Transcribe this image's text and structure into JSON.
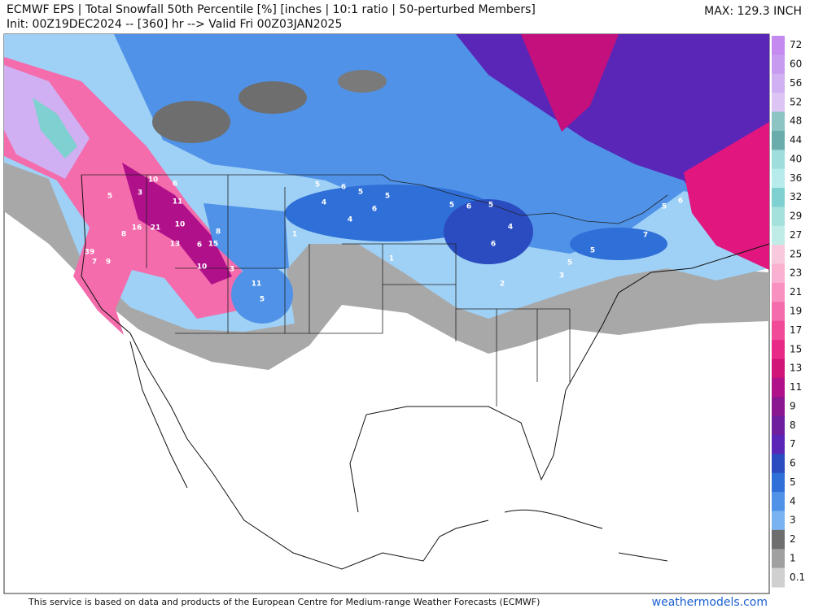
{
  "header": {
    "title": "ECMWF EPS | Total Snowfall 50th Percentile [%] [inches | 10:1 ratio | 50-perturbed Members]",
    "init": "Init: 00Z19DEC2024 -- [360] hr --> Valid Fri 00Z03JAN2025",
    "max": "MAX: 129.3 INCH"
  },
  "legend": {
    "labels": [
      "72",
      "60",
      "56",
      "52",
      "48",
      "44",
      "40",
      "36",
      "32",
      "29",
      "27",
      "25",
      "23",
      "21",
      "19",
      "17",
      "15",
      "13",
      "11",
      "9",
      "8",
      "7",
      "6",
      "5",
      "4",
      "3",
      "2",
      "1",
      "0.1"
    ],
    "colors": [
      "#c48af0",
      "#c79cf0",
      "#d0b0f2",
      "#dcc4f4",
      "#8cc4c4",
      "#6aacac",
      "#9fdcdc",
      "#b8ecec",
      "#7fd0d0",
      "#a4e0dc",
      "#c0ece8",
      "#f8c8dc",
      "#fab0d0",
      "#f890c0",
      "#f46cac",
      "#f04a98",
      "#e82a86",
      "#d01478",
      "#b0108a",
      "#8a1690",
      "#6e1e9e",
      "#5a26b8",
      "#2a4cc0",
      "#2f6fd8",
      "#4f92e8",
      "#7ab4f0",
      "#6e6e6e",
      "#a0a0a0",
      "#d0d0d0"
    ]
  },
  "map_labels": [
    "10",
    "6",
    "11",
    "3",
    "5",
    "10",
    "21",
    "16",
    "8",
    "13",
    "6",
    "15",
    "8",
    "9",
    "7",
    "39",
    "10",
    "11",
    "5",
    "3",
    "5",
    "6",
    "5",
    "4",
    "5",
    "6",
    "4",
    "5",
    "6",
    "5",
    "4",
    "6",
    "5",
    "5",
    "5",
    "6",
    "7",
    "3",
    "2",
    "1",
    "1"
  ],
  "footer": {
    "notice": "This service is based on data and products of the European Centre for Medium-range Weather Forecasts (ECMWF)",
    "site": "weathermodels.com"
  }
}
